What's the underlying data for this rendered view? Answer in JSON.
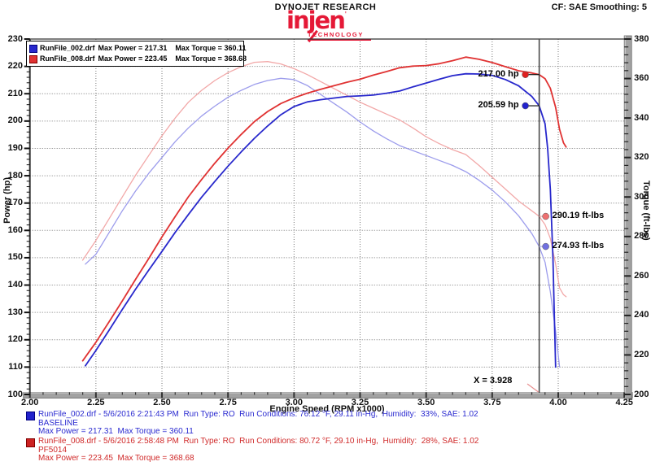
{
  "header": {
    "brand": "DYNOJET RESEARCH",
    "settings": "CF: SAE  Smoothing: 5",
    "logo_text": "injen",
    "logo_tm": "'",
    "logo_sub": "TECHNOLOGY"
  },
  "legend_box": {
    "rows": [
      {
        "color": "#2828cc",
        "border": "#000080",
        "file": "RunFile_002.drf",
        "max_power": "Max Power = 217.31",
        "max_torque": "Max Torque = 360.11"
      },
      {
        "color": "#e03232",
        "border": "#800000",
        "file": "RunFile_008.drf",
        "max_power": "Max Power = 223.45",
        "max_torque": "Max Torque = 368.68"
      }
    ]
  },
  "chart_data": {
    "type": "line",
    "xlabel": "Engine Speed (RPM x1000)",
    "ylabel_left": "Power (hp)",
    "ylabel_right": "Torque (ft-lbs)",
    "x_range": [
      2.0,
      4.25
    ],
    "x_major": 0.25,
    "x_minor": 0.05,
    "yl_range": [
      100,
      230
    ],
    "yl_major": 10,
    "yl_minor": 2,
    "yr_range": [
      200,
      380
    ],
    "yr_major": 20,
    "yr_minor": 4,
    "grid": "on",
    "cursor_x": 3.928,
    "cursor_label": "X = 3.928",
    "colors": {
      "grid": "#777777",
      "cursor": "#4a4a4a",
      "frame_fill": "#a2a2a2",
      "frame_edge": "#666666",
      "frame_hilite": "#d8d8d8",
      "spine": "#333333"
    },
    "series": [
      {
        "name": "baseline_torque",
        "run": "BASELINE",
        "axis": "right",
        "color": "#9c9cec",
        "width": 1.3,
        "points": [
          [
            2.21,
            266
          ],
          [
            2.25,
            271
          ],
          [
            2.3,
            282
          ],
          [
            2.35,
            293
          ],
          [
            2.4,
            303
          ],
          [
            2.45,
            312
          ],
          [
            2.5,
            320
          ],
          [
            2.55,
            328
          ],
          [
            2.6,
            335
          ],
          [
            2.65,
            341
          ],
          [
            2.7,
            346
          ],
          [
            2.75,
            350.5
          ],
          [
            2.8,
            354
          ],
          [
            2.85,
            357
          ],
          [
            2.9,
            359
          ],
          [
            2.95,
            360.1
          ],
          [
            3.0,
            359.5
          ],
          [
            3.05,
            356.5
          ],
          [
            3.1,
            352
          ],
          [
            3.15,
            347.5
          ],
          [
            3.2,
            343
          ],
          [
            3.25,
            338
          ],
          [
            3.3,
            333.5
          ],
          [
            3.35,
            329.5
          ],
          [
            3.4,
            326
          ],
          [
            3.45,
            323.5
          ],
          [
            3.5,
            321
          ],
          [
            3.55,
            318.5
          ],
          [
            3.6,
            316
          ],
          [
            3.65,
            312.8
          ],
          [
            3.7,
            308.5
          ],
          [
            3.75,
            303.5
          ],
          [
            3.8,
            297.5
          ],
          [
            3.85,
            290.5
          ],
          [
            3.9,
            281.5
          ],
          [
            3.928,
            274.9
          ],
          [
            3.95,
            267
          ],
          [
            3.97,
            252
          ],
          [
            3.99,
            232
          ],
          [
            4.0,
            220
          ],
          [
            4.005,
            214
          ]
        ]
      },
      {
        "name": "pf5014_torque",
        "run": "PF5014",
        "axis": "right",
        "color": "#f2a8a8",
        "width": 1.3,
        "points": [
          [
            2.2,
            268
          ],
          [
            2.25,
            278
          ],
          [
            2.3,
            289
          ],
          [
            2.35,
            300
          ],
          [
            2.4,
            311
          ],
          [
            2.45,
            321
          ],
          [
            2.5,
            331
          ],
          [
            2.55,
            340
          ],
          [
            2.6,
            348
          ],
          [
            2.65,
            354
          ],
          [
            2.7,
            359
          ],
          [
            2.75,
            363
          ],
          [
            2.8,
            366
          ],
          [
            2.85,
            368.2
          ],
          [
            2.9,
            368.6
          ],
          [
            2.95,
            367.4
          ],
          [
            3.0,
            365
          ],
          [
            3.05,
            362
          ],
          [
            3.1,
            358.5
          ],
          [
            3.15,
            355
          ],
          [
            3.2,
            351.5
          ],
          [
            3.25,
            348
          ],
          [
            3.3,
            345
          ],
          [
            3.35,
            342
          ],
          [
            3.4,
            339
          ],
          [
            3.45,
            335
          ],
          [
            3.5,
            330.5
          ],
          [
            3.55,
            327
          ],
          [
            3.6,
            324
          ],
          [
            3.65,
            321.5
          ],
          [
            3.7,
            316
          ],
          [
            3.75,
            310
          ],
          [
            3.8,
            304
          ],
          [
            3.85,
            298
          ],
          [
            3.9,
            293
          ],
          [
            3.928,
            290.2
          ],
          [
            3.95,
            286
          ],
          [
            3.97,
            279
          ],
          [
            3.99,
            266
          ],
          [
            4.005,
            254
          ],
          [
            4.02,
            250.5
          ],
          [
            4.03,
            249.5
          ]
        ]
      },
      {
        "name": "baseline_power",
        "run": "BASELINE",
        "axis": "left",
        "color": "#2828cc",
        "width": 1.8,
        "points": [
          [
            2.21,
            110.5
          ],
          [
            2.25,
            116.1
          ],
          [
            2.3,
            123.5
          ],
          [
            2.35,
            131.1
          ],
          [
            2.4,
            138.5
          ],
          [
            2.45,
            145.5
          ],
          [
            2.5,
            152.3
          ],
          [
            2.55,
            159.3
          ],
          [
            2.6,
            165.8
          ],
          [
            2.65,
            172.1
          ],
          [
            2.7,
            177.9
          ],
          [
            2.75,
            183.5
          ],
          [
            2.8,
            188.7
          ],
          [
            2.85,
            193.7
          ],
          [
            2.9,
            198.2
          ],
          [
            2.95,
            202.3
          ],
          [
            3.0,
            205.3
          ],
          [
            3.05,
            207.0
          ],
          [
            3.1,
            207.8
          ],
          [
            3.15,
            208.4
          ],
          [
            3.2,
            209.0
          ],
          [
            3.25,
            209.2
          ],
          [
            3.3,
            209.5
          ],
          [
            3.35,
            210.2
          ],
          [
            3.4,
            211.0
          ],
          [
            3.45,
            212.5
          ],
          [
            3.5,
            213.9
          ],
          [
            3.55,
            215.3
          ],
          [
            3.6,
            216.6
          ],
          [
            3.65,
            217.3
          ],
          [
            3.7,
            217.2
          ],
          [
            3.75,
            216.7
          ],
          [
            3.8,
            215.2
          ],
          [
            3.85,
            212.9
          ],
          [
            3.9,
            209.0
          ],
          [
            3.928,
            205.6
          ],
          [
            3.95,
            199
          ],
          [
            3.96,
            190
          ],
          [
            3.97,
            175
          ],
          [
            3.98,
            150
          ],
          [
            3.985,
            130
          ],
          [
            3.99,
            110
          ]
        ]
      },
      {
        "name": "pf5014_power",
        "run": "PF5014",
        "axis": "left",
        "color": "#e03232",
        "width": 1.8,
        "points": [
          [
            2.2,
            112.3
          ],
          [
            2.25,
            119.1
          ],
          [
            2.3,
            126.6
          ],
          [
            2.35,
            134.2
          ],
          [
            2.4,
            142.1
          ],
          [
            2.45,
            149.7
          ],
          [
            2.5,
            157.6
          ],
          [
            2.55,
            165.1
          ],
          [
            2.6,
            172.3
          ],
          [
            2.65,
            178.6
          ],
          [
            2.7,
            184.6
          ],
          [
            2.75,
            190.1
          ],
          [
            2.8,
            195.1
          ],
          [
            2.85,
            199.8
          ],
          [
            2.9,
            203.5
          ],
          [
            2.95,
            206.4
          ],
          [
            3.0,
            208.5
          ],
          [
            3.05,
            210.2
          ],
          [
            3.1,
            211.6
          ],
          [
            3.15,
            212.9
          ],
          [
            3.2,
            214.2
          ],
          [
            3.25,
            215.3
          ],
          [
            3.3,
            216.8
          ],
          [
            3.35,
            218.1
          ],
          [
            3.4,
            219.5
          ],
          [
            3.45,
            220.1
          ],
          [
            3.5,
            220.3
          ],
          [
            3.55,
            221.0
          ],
          [
            3.6,
            222.1
          ],
          [
            3.65,
            223.4
          ],
          [
            3.7,
            222.6
          ],
          [
            3.75,
            221.4
          ],
          [
            3.8,
            219.9
          ],
          [
            3.85,
            218.4
          ],
          [
            3.9,
            217.6
          ],
          [
            3.928,
            217.0
          ],
          [
            3.95,
            215.5
          ],
          [
            3.97,
            212
          ],
          [
            3.99,
            205
          ],
          [
            4.005,
            197
          ],
          [
            4.02,
            192
          ],
          [
            4.03,
            190.5
          ]
        ]
      }
    ],
    "callouts": [
      {
        "label": "217.00 hp",
        "axis": "left",
        "value": 217.0,
        "side": "left",
        "dot": "#e02020",
        "connector": "#111111"
      },
      {
        "label": "205.59 hp",
        "axis": "left",
        "value": 205.59,
        "side": "left",
        "dot": "#2424cc",
        "connector": "#111111"
      },
      {
        "label": "290.19 ft-lbs",
        "axis": "right",
        "value": 290.19,
        "side": "right",
        "dot": "#ee7070",
        "connector": "#eeaaaa"
      },
      {
        "label": "274.93 ft-lbs",
        "axis": "right",
        "value": 274.93,
        "side": "right",
        "dot": "#7070e0",
        "connector": "#aaaaee"
      }
    ]
  },
  "footer": {
    "runs": [
      {
        "color": "#2a2ad0",
        "sq": "#2222cc",
        "sq_border": "#000080",
        "line1": "RunFile_002.drf - 5/6/2016 2:21:43 PM  Run Type: RO  Run Conditions: 76.12 °F, 29.11 in-Hg,  Humidity:  33%, SAE: 1.02",
        "line2": "BASELINE",
        "line3": "Max Power = 217.31  Max Torque = 360.11"
      },
      {
        "color": "#d02a2a",
        "sq": "#cc2222",
        "sq_border": "#800000",
        "line1": "RunFile_008.drf - 5/6/2016 2:58:48 PM  Run Type: RO  Run Conditions: 80.72 °F, 29.10 in-Hg,  Humidity:  28%, SAE: 1.02",
        "line2": "PF5014",
        "line3": "Max Power = 223.45  Max Torque = 368.68"
      }
    ]
  }
}
